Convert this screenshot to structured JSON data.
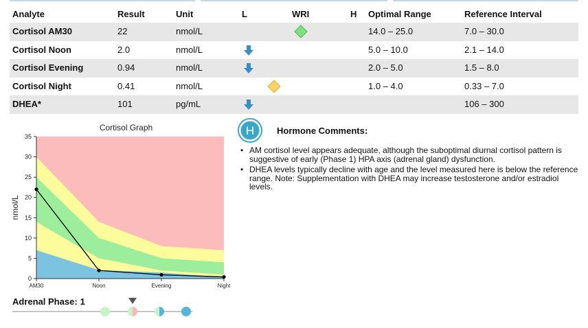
{
  "table": {
    "headers": {
      "analyte": "Analyte",
      "result": "Result",
      "unit": "Unit",
      "low": "L",
      "wri": "WRI",
      "high": "H",
      "optimal": "Optimal Range",
      "reference": "Reference Interval"
    },
    "rows": [
      {
        "analyte": "Cortisol AM30",
        "result": "22",
        "unit": "nmol/L",
        "flag": "optimal",
        "optimal": "14.0 – 25.0",
        "reference": "7.0 – 30.0"
      },
      {
        "analyte": "Cortisol Noon",
        "result": "2.0",
        "unit": "nmol/L",
        "flag": "low",
        "optimal": "5.0 – 10.0",
        "reference": "2.1 – 14.0"
      },
      {
        "analyte": "Cortisol Evening",
        "result": "0.94",
        "unit": "nmol/L",
        "flag": "low",
        "optimal": "2.0 – 5.0",
        "reference": "1.5 – 8.0"
      },
      {
        "analyte": "Cortisol Night",
        "result": "0.41",
        "unit": "nmol/L",
        "flag": "borderline",
        "optimal": "1.0 – 4.0",
        "reference": "0.33 – 7.0"
      },
      {
        "analyte": "DHEA*",
        "result": "101",
        "unit": "pg/mL",
        "flag": "low",
        "optimal": "",
        "reference": "106 – 300"
      }
    ]
  },
  "chart_data": {
    "type": "area",
    "title": "Cortisol Graph",
    "xlabel": "",
    "ylabel": "nmol/L",
    "categories": [
      "AM30",
      "Noon",
      "Evening",
      "Night"
    ],
    "ylim": [
      0,
      35
    ],
    "yticks": [
      0,
      5,
      10,
      15,
      20,
      25,
      30,
      35
    ],
    "bands": {
      "blue_upper": [
        7.0,
        2.1,
        1.5,
        0.33
      ],
      "optimal_low": [
        14.0,
        5.0,
        2.0,
        1.0
      ],
      "optimal_high": [
        25.0,
        10.0,
        5.0,
        4.0
      ],
      "reference_high": [
        30.0,
        14.0,
        8.0,
        7.0
      ]
    },
    "series": [
      {
        "values": [
          22,
          2.0,
          0.94,
          0.41
        ]
      }
    ],
    "colors": {
      "high_zone": "#fdbcbc",
      "reference": "#fcfc9c",
      "optimal": "#9cee9c",
      "low_zone": "#7cc3df",
      "line": "#000000"
    },
    "grid": false
  },
  "adrenal_phase": {
    "label": "Adrenal Phase:",
    "value": "1",
    "selected_index": 1
  },
  "comments": {
    "badge": "H",
    "title": "Hormone Comments:",
    "items": [
      "AM cortisol level appears adequate, although the suboptimal diurnal cortisol pattern is suggestive of early (Phase 1) HPA axis (adrenal gland) dysfunction.",
      "DHEA levels typically decline with age and the level measured here is below the reference range. Note: Supplementation with DHEA may increase testosterone and/or estradiol levels."
    ]
  },
  "colors": {
    "low_arrow": "#3a8fc0",
    "optimal_diamond": "#7ee07e",
    "borderline_diamond": "#f7d46a",
    "badge": "#3aa6c9",
    "shade": "#e7e7e7"
  }
}
